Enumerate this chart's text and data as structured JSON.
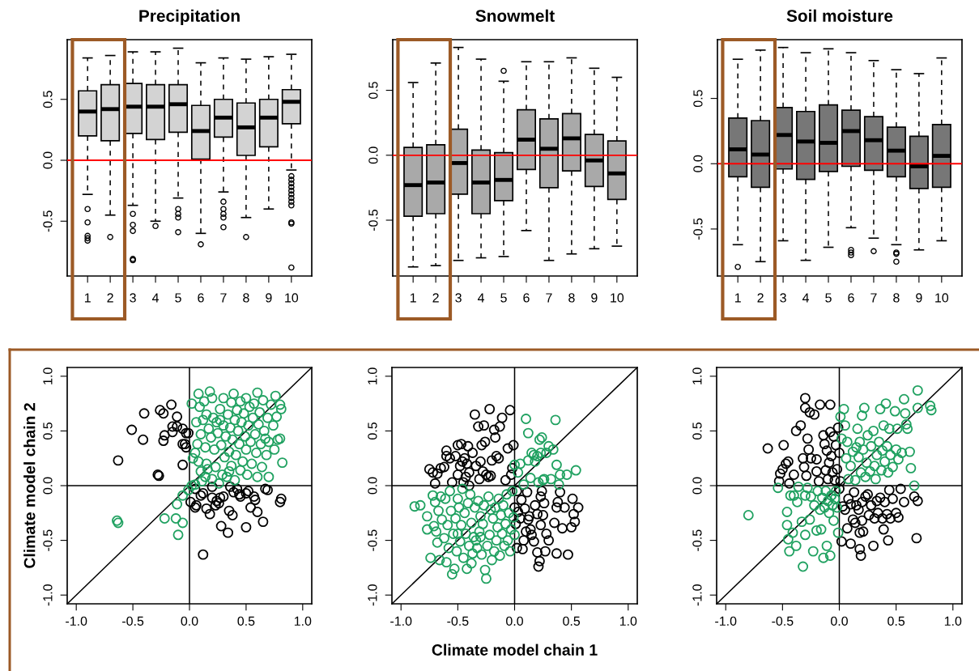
{
  "chart_data": [
    {
      "type": "box",
      "title": "Precipitation",
      "categories": [
        "1",
        "2",
        "3",
        "4",
        "5",
        "6",
        "7",
        "8",
        "9",
        "10"
      ],
      "ylim": [
        -0.95,
        0.99
      ],
      "yticks": [
        {
          "value": -0.5,
          "label": "-0.5"
        },
        {
          "value": 0,
          "label": "0.0"
        },
        {
          "value": 0.5,
          "label": "0.5"
        }
      ],
      "ref_lines": [
        {
          "axis": "y",
          "value": 0,
          "color": "#ff0000"
        }
      ],
      "series": [
        {
          "color": "#d3d3d3",
          "boxes": [
            {
              "low": -0.28,
              "q1": 0.2,
              "median": 0.4,
              "q3": 0.57,
              "high": 0.84,
              "outliers": [
                -0.4,
                -0.51,
                -0.62,
                -0.64,
                -0.66
              ]
            },
            {
              "low": -0.45,
              "q1": 0.16,
              "median": 0.42,
              "q3": 0.62,
              "high": 0.86,
              "outliers": [
                -0.63
              ]
            },
            {
              "low": -0.37,
              "q1": 0.22,
              "median": 0.44,
              "q3": 0.63,
              "high": 0.89,
              "outliers": [
                -0.44,
                -0.53,
                -0.58,
                -0.81,
                -0.82
              ]
            },
            {
              "low": -0.5,
              "q1": 0.17,
              "median": 0.44,
              "q3": 0.62,
              "high": 0.89,
              "outliers": [
                -0.54
              ]
            },
            {
              "low": -0.31,
              "q1": 0.23,
              "median": 0.46,
              "q3": 0.62,
              "high": 0.92,
              "outliers": [
                -0.4,
                -0.44,
                -0.47,
                -0.59
              ]
            },
            {
              "low": -0.6,
              "q1": 0.01,
              "median": 0.24,
              "q3": 0.45,
              "high": 0.8,
              "outliers": [
                -0.69
              ]
            },
            {
              "low": -0.26,
              "q1": 0.19,
              "median": 0.35,
              "q3": 0.5,
              "high": 0.84,
              "outliers": [
                -0.34,
                -0.4,
                -0.44,
                -0.47,
                -0.55
              ]
            },
            {
              "low": -0.47,
              "q1": 0.04,
              "median": 0.27,
              "q3": 0.47,
              "high": 0.83,
              "outliers": [
                -0.63
              ]
            },
            {
              "low": -0.4,
              "q1": 0.11,
              "median": 0.35,
              "q3": 0.5,
              "high": 0.85
            },
            {
              "low": -0.08,
              "q1": 0.3,
              "median": 0.48,
              "q3": 0.58,
              "high": 0.87,
              "outliers": [
                -0.13,
                -0.16,
                -0.19,
                -0.22,
                -0.25,
                -0.28,
                -0.31,
                -0.34,
                -0.37,
                -0.51,
                -0.52,
                -0.88
              ]
            }
          ]
        }
      ]
    },
    {
      "type": "box",
      "title": "Snowmelt",
      "categories": [
        "1",
        "2",
        "3",
        "4",
        "5",
        "6",
        "7",
        "8",
        "9",
        "10"
      ],
      "ylim": [
        -0.93,
        0.89
      ],
      "yticks": [
        {
          "value": -0.5,
          "label": "-0.5"
        },
        {
          "value": 0,
          "label": "0.0"
        },
        {
          "value": 0.5,
          "label": "0.5"
        }
      ],
      "ref_lines": [
        {
          "axis": "y",
          "value": 0,
          "color": "#ff0000"
        }
      ],
      "series": [
        {
          "color": "#a9a9a9",
          "boxes": [
            {
              "low": -0.86,
              "q1": -0.47,
              "median": -0.23,
              "q3": 0.06,
              "high": 0.56
            },
            {
              "low": -0.85,
              "q1": -0.45,
              "median": -0.21,
              "q3": 0.08,
              "high": 0.71
            },
            {
              "low": -0.81,
              "q1": -0.3,
              "median": -0.06,
              "q3": 0.2,
              "high": 0.83
            },
            {
              "low": -0.79,
              "q1": -0.45,
              "median": -0.21,
              "q3": 0.04,
              "high": 0.74
            },
            {
              "low": -0.78,
              "q1": -0.35,
              "median": -0.19,
              "q3": 0.02,
              "high": 0.57,
              "outliers": [
                0.65
              ]
            },
            {
              "low": -0.58,
              "q1": -0.11,
              "median": 0.12,
              "q3": 0.35,
              "high": 0.72
            },
            {
              "low": -0.81,
              "q1": -0.25,
              "median": 0.05,
              "q3": 0.28,
              "high": 0.72
            },
            {
              "low": -0.76,
              "q1": -0.12,
              "median": 0.13,
              "q3": 0.32,
              "high": 0.75
            },
            {
              "low": -0.72,
              "q1": -0.24,
              "median": -0.04,
              "q3": 0.16,
              "high": 0.67
            },
            {
              "low": -0.7,
              "q1": -0.34,
              "median": -0.14,
              "q3": 0.11,
              "high": 0.6
            }
          ]
        }
      ]
    },
    {
      "type": "box",
      "title": "Soil moisture",
      "categories": [
        "1",
        "2",
        "3",
        "4",
        "5",
        "6",
        "7",
        "8",
        "9",
        "10"
      ],
      "ylim": [
        -0.86,
        0.95
      ],
      "yticks": [
        {
          "value": -0.5,
          "label": "-0.5"
        },
        {
          "value": 0,
          "label": "0.0"
        },
        {
          "value": 0.5,
          "label": "0.5"
        }
      ],
      "ref_lines": [
        {
          "axis": "y",
          "value": 0,
          "color": "#ff0000"
        }
      ],
      "series": [
        {
          "color": "#777777",
          "boxes": [
            {
              "low": -0.62,
              "q1": -0.1,
              "median": 0.11,
              "q3": 0.35,
              "high": 0.8,
              "outliers": [
                -0.79
              ]
            },
            {
              "low": -0.75,
              "q1": -0.18,
              "median": 0.07,
              "q3": 0.33,
              "high": 0.87
            },
            {
              "low": -0.59,
              "q1": -0.04,
              "median": 0.22,
              "q3": 0.43,
              "high": 0.89
            },
            {
              "low": -0.74,
              "q1": -0.12,
              "median": 0.17,
              "q3": 0.4,
              "high": 0.85
            },
            {
              "low": -0.64,
              "q1": -0.06,
              "median": 0.16,
              "q3": 0.45,
              "high": 0.88
            },
            {
              "low": -0.49,
              "q1": -0.02,
              "median": 0.25,
              "q3": 0.41,
              "high": 0.85,
              "outliers": [
                -0.66,
                -0.68,
                -0.7
              ]
            },
            {
              "low": -0.57,
              "q1": -0.05,
              "median": 0.18,
              "q3": 0.36,
              "high": 0.79,
              "outliers": [
                -0.67
              ]
            },
            {
              "low": -0.62,
              "q1": -0.1,
              "median": 0.1,
              "q3": 0.28,
              "high": 0.72,
              "outliers": [
                -0.68,
                -0.69,
                -0.75
              ]
            },
            {
              "low": -0.66,
              "q1": -0.19,
              "median": -0.02,
              "q3": 0.21,
              "high": 0.69
            },
            {
              "low": -0.59,
              "q1": -0.18,
              "median": 0.06,
              "q3": 0.3,
              "high": 0.81
            }
          ]
        }
      ]
    },
    {
      "type": "scatter",
      "ylabel": "Climate model chain 2",
      "marker": "circle",
      "xlim": [
        -1.08,
        1.08
      ],
      "ylim": [
        -1.08,
        1.08
      ],
      "xticks": [
        {
          "value": -1,
          "label": "-1.0"
        },
        {
          "value": -0.5,
          "label": "-0.5"
        },
        {
          "value": 0,
          "label": "0.0"
        },
        {
          "value": 0.5,
          "label": "0.5"
        },
        {
          "value": 1,
          "label": "1.0"
        }
      ],
      "yticks": [
        {
          "value": -1,
          "label": "-1.0"
        },
        {
          "value": -0.5,
          "label": "-0.5"
        },
        {
          "value": 0,
          "label": "0.0"
        },
        {
          "value": 0.5,
          "label": "0.5"
        },
        {
          "value": 1,
          "label": "1.0"
        }
      ],
      "ref_lines": [
        {
          "axis": "x",
          "value": 0,
          "color": "#000000"
        },
        {
          "axis": "y",
          "value": 0,
          "color": "#000000"
        }
      ],
      "series": [
        {
          "color": "#000000",
          "x": [
            -0.63,
            -0.51,
            -0.41,
            -0.4,
            -0.28,
            -0.27,
            -0.26,
            -0.23,
            -0.23,
            -0.22,
            -0.16,
            -0.15,
            -0.15,
            -0.11,
            -0.11,
            -0.06,
            -0.06,
            -0.04,
            -0.03,
            -0.03,
            -0.01,
            -0.06,
            0.01,
            0.05,
            0.06,
            0.05,
            0.1,
            0.12,
            0.12,
            0.15,
            0.18,
            0.2,
            0.23,
            0.24,
            0.26,
            0.27,
            0.28,
            0.3,
            0.34,
            0.35,
            0.36,
            0.38,
            0.39,
            0.42,
            0.44,
            0.45,
            0.5,
            0.5,
            0.52,
            0.54,
            0.57,
            0.58,
            0.6,
            0.65,
            0.67,
            0.69,
            0.8,
            0.81,
            0.2
          ],
          "values": [
            0.23,
            0.51,
            0.42,
            0.66,
            0.1,
            0.09,
            0.69,
            0.66,
            0.41,
            0.46,
            0.74,
            0.54,
            0.49,
            0.63,
            0.54,
            0.52,
            0.38,
            0.38,
            0.48,
            0.35,
            0.48,
            0.19,
            -0.15,
            -0.2,
            -0.18,
            -0.03,
            -0.09,
            -0.07,
            -0.63,
            -0.21,
            -0.26,
            -0.11,
            -0.18,
            -0.14,
            -0.16,
            -0.11,
            -0.37,
            -0.1,
            -0.43,
            -0.23,
            -0.01,
            -0.27,
            -0.06,
            -0.03,
            -0.08,
            -0.1,
            -0.07,
            -0.38,
            -0.05,
            -0.2,
            -0.1,
            -0.13,
            -0.24,
            -0.33,
            -0.03,
            -0.04,
            -0.15,
            -0.12,
            -0.01
          ]
        },
        {
          "color": "#1fa160",
          "x": [
            -0.64,
            -0.63,
            -0.22,
            -0.12,
            -0.11,
            -0.1,
            -0.06,
            -0.06,
            -0.01,
            0.02,
            0.05,
            0.02,
            0.03,
            0.05,
            0.06,
            0.07,
            0.08,
            0.09,
            0.1,
            0.1,
            0.11,
            0.12,
            0.13,
            0.14,
            0.15,
            0.15,
            0.16,
            0.17,
            0.18,
            0.19,
            0.2,
            0.2,
            0.21,
            0.22,
            0.23,
            0.24,
            0.25,
            0.26,
            0.27,
            0.28,
            0.29,
            0.3,
            0.3,
            0.31,
            0.32,
            0.33,
            0.34,
            0.35,
            0.36,
            0.37,
            0.37,
            0.38,
            0.39,
            0.4,
            0.4,
            0.41,
            0.42,
            0.43,
            0.44,
            0.45,
            0.45,
            0.46,
            0.47,
            0.48,
            0.49,
            0.5,
            0.5,
            0.51,
            0.52,
            0.53,
            0.54,
            0.55,
            0.56,
            0.57,
            0.58,
            0.59,
            0.6,
            0.6,
            0.61,
            0.62,
            0.63,
            0.64,
            0.65,
            0.66,
            0.67,
            0.68,
            0.69,
            0.7,
            0.7,
            0.72,
            0.74,
            0.75,
            0.77,
            0.78,
            0.8,
            0.81,
            0.82,
            0.8,
            0.76,
            0.35,
            0.27,
            0.14,
            0.08
          ],
          "values": [
            -0.32,
            -0.34,
            -0.3,
            -0.3,
            -0.17,
            -0.45,
            -0.34,
            -0.09,
            -0.04,
            0.0,
            0.01,
            0.75,
            0.25,
            0.3,
            0.58,
            0.38,
            0.84,
            0.72,
            0.47,
            0.13,
            0.04,
            0.6,
            0.77,
            0.35,
            0.65,
            0.2,
            0.15,
            0.52,
            0.86,
            0.44,
            0.8,
            0.06,
            0.62,
            0.33,
            0.17,
            0.58,
            0.48,
            0.02,
            0.7,
            0.37,
            0.1,
            0.8,
            0.55,
            0.26,
            0.45,
            0.08,
            0.65,
            0.31,
            0.53,
            0.76,
            0.18,
            0.42,
            0.84,
            0.6,
            0.05,
            0.28,
            0.69,
            0.5,
            0.38,
            0.14,
            0.77,
            0.58,
            0.22,
            0.66,
            0.45,
            0.8,
            0.33,
            0.1,
            0.55,
            0.72,
            0.4,
            0.2,
            0.62,
            0.75,
            0.47,
            0.3,
            0.85,
            0.08,
            0.56,
            0.67,
            0.38,
            0.17,
            0.78,
            0.5,
            0.43,
            0.28,
            0.62,
            0.4,
            0.08,
            0.74,
            0.55,
            0.33,
            0.63,
            0.42,
            0.74,
            0.7,
            0.21,
            0.43,
            0.82,
            0.13,
            0.6,
            0.08,
            0.22
          ]
        },
        {
          "type": "line",
          "marker": "none",
          "color": "#000000",
          "x": [
            -1.08,
            1.08
          ],
          "values": [
            -1.08,
            1.08
          ]
        }
      ]
    },
    {
      "type": "scatter",
      "xlabel": "Climate model chain 1",
      "marker": "circle",
      "xlim": [
        -1.08,
        1.08
      ],
      "ylim": [
        -1.08,
        1.08
      ],
      "xticks": [
        {
          "value": -1,
          "label": "-1.0"
        },
        {
          "value": -0.5,
          "label": "-0.5"
        },
        {
          "value": 0,
          "label": "0.0"
        },
        {
          "value": 0.5,
          "label": "0.5"
        },
        {
          "value": 1,
          "label": "1.0"
        }
      ],
      "yticks": [
        {
          "value": -1,
          "label": "-1.0"
        },
        {
          "value": -0.5,
          "label": "-0.5"
        },
        {
          "value": 0,
          "label": "0.0"
        },
        {
          "value": 0.5,
          "label": "0.5"
        },
        {
          "value": 1,
          "label": "1.0"
        }
      ],
      "ref_lines": [
        {
          "axis": "x",
          "value": 0,
          "color": "#000000"
        },
        {
          "axis": "y",
          "value": 0,
          "color": "#000000"
        }
      ],
      "series": [
        {
          "color": "#000000",
          "x": [
            -0.7,
            -0.75,
            -0.72,
            -0.68,
            -0.65,
            -0.62,
            -0.6,
            -0.6,
            -0.57,
            -0.55,
            -0.52,
            -0.5,
            -0.5,
            -0.48,
            -0.47,
            -0.46,
            -0.45,
            -0.44,
            -0.43,
            -0.42,
            -0.41,
            -0.4,
            -0.4,
            -0.37,
            -0.35,
            -0.34,
            -0.32,
            -0.31,
            -0.3,
            -0.29,
            -0.28,
            -0.27,
            -0.26,
            -0.25,
            -0.23,
            -0.22,
            -0.21,
            -0.2,
            -0.18,
            -0.17,
            -0.16,
            -0.14,
            -0.13,
            -0.11,
            -0.08,
            -0.06,
            -0.04,
            -0.03,
            -0.01,
            -0.02,
            0.0,
            0.01,
            0.02,
            0.02,
            0.03,
            0.05,
            0.06,
            0.07,
            0.08,
            0.09,
            0.1,
            0.11,
            0.12,
            0.13,
            0.14,
            0.15,
            0.17,
            0.18,
            0.2,
            0.2,
            0.21,
            0.22,
            0.23,
            0.23,
            0.24,
            0.25,
            0.26,
            0.27,
            0.28,
            0.3,
            0.35,
            0.37,
            0.37,
            0.38,
            0.4,
            0.42,
            0.44,
            0.47,
            0.5,
            0.51,
            0.52,
            0.53,
            0.56
          ],
          "values": [
            0.02,
            0.15,
            0.12,
            0.11,
            0.16,
            0.17,
            0.32,
            0.27,
            0.25,
            0.03,
            0.27,
            0.37,
            0.1,
            0.18,
            0.38,
            0.22,
            0.03,
            0.25,
            0.08,
            0.2,
            0.36,
            0.0,
            0.12,
            0.3,
            0.65,
            0.18,
            0.54,
            0.06,
            0.22,
            0.37,
            0.13,
            0.55,
            0.4,
            0.1,
            0.08,
            0.7,
            0.09,
            0.23,
            0.51,
            0.44,
            0.27,
            0.25,
            0.54,
            0.62,
            0.05,
            0.34,
            0.69,
            0.1,
            0.37,
            0.16,
            -0.2,
            -0.35,
            -0.05,
            -0.57,
            -0.24,
            -0.3,
            -0.13,
            -0.58,
            -0.5,
            -0.21,
            -0.42,
            -0.06,
            -0.31,
            -0.28,
            -0.4,
            -0.45,
            -0.51,
            -0.18,
            -0.61,
            -0.26,
            -0.74,
            -0.69,
            -0.1,
            -0.36,
            -0.05,
            -0.27,
            -0.16,
            -0.6,
            -0.44,
            -0.5,
            -0.34,
            -0.2,
            -0.62,
            -0.15,
            -0.06,
            -0.39,
            -0.2,
            -0.63,
            -0.38,
            -0.12,
            -0.26,
            -0.33,
            -0.2
          ]
        },
        {
          "color": "#1fa160",
          "x": [
            0.0,
            0.03,
            0.05,
            0.08,
            0.1,
            0.12,
            0.12,
            0.14,
            0.15,
            0.17,
            0.18,
            0.2,
            0.21,
            0.22,
            0.23,
            0.24,
            0.25,
            0.26,
            0.28,
            0.3,
            0.32,
            0.34,
            0.36,
            0.37,
            0.39,
            0.4,
            0.46,
            0.54,
            -0.88,
            -0.83,
            -0.77,
            -0.77,
            -0.74,
            -0.72,
            -0.71,
            -0.7,
            -0.69,
            -0.68,
            -0.67,
            -0.66,
            -0.65,
            -0.64,
            -0.62,
            -0.61,
            -0.6,
            -0.59,
            -0.58,
            -0.57,
            -0.56,
            -0.55,
            -0.54,
            -0.53,
            -0.52,
            -0.51,
            -0.5,
            -0.49,
            -0.48,
            -0.47,
            -0.46,
            -0.45,
            -0.44,
            -0.43,
            -0.42,
            -0.41,
            -0.4,
            -0.39,
            -0.38,
            -0.37,
            -0.36,
            -0.35,
            -0.34,
            -0.33,
            -0.32,
            -0.31,
            -0.3,
            -0.29,
            -0.28,
            -0.27,
            -0.26,
            -0.25,
            -0.24,
            -0.23,
            -0.22,
            -0.21,
            -0.2,
            -0.19,
            -0.18,
            -0.17,
            -0.16,
            -0.15,
            -0.14,
            -0.13,
            -0.12,
            -0.11,
            -0.1,
            -0.09,
            -0.08,
            -0.07,
            -0.06,
            -0.05,
            -0.04,
            -0.03,
            -0.02,
            -0.01,
            0.0,
            -0.3,
            -0.38,
            -0.5
          ],
          "values": [
            0.19,
            0.12,
            0.2,
            0.01,
            0.61,
            0.48,
            0.23,
            0.07,
            0.3,
            0.28,
            0.22,
            0.27,
            0.03,
            0.42,
            0.3,
            0.44,
            0.05,
            0.06,
            0.3,
            0.36,
            0.06,
            0.33,
            0.6,
            0.19,
            0.01,
            0.1,
            0.1,
            0.14,
            -0.19,
            -0.18,
            -0.28,
            -0.4,
            -0.66,
            -0.09,
            -0.37,
            -0.15,
            -0.42,
            -0.52,
            -0.23,
            -0.68,
            -0.1,
            -0.31,
            -0.48,
            -0.12,
            -0.7,
            -0.36,
            -0.57,
            -0.05,
            -0.23,
            -0.81,
            -0.44,
            -0.76,
            -0.3,
            -0.6,
            -0.12,
            -0.2,
            -0.51,
            -0.36,
            -0.03,
            -0.66,
            -0.25,
            -0.44,
            -0.76,
            -0.16,
            -0.55,
            -0.08,
            -0.34,
            -0.62,
            -0.47,
            -0.2,
            -0.5,
            -0.57,
            -0.14,
            -0.42,
            -0.28,
            -0.63,
            -0.35,
            -0.18,
            -0.77,
            -0.85,
            -0.55,
            -0.1,
            -0.45,
            -0.22,
            -0.68,
            -0.3,
            -0.6,
            -0.2,
            -0.5,
            -0.38,
            -0.12,
            -0.64,
            -0.27,
            -0.44,
            -0.18,
            -0.55,
            -0.35,
            -0.08,
            -0.5,
            -0.25,
            -0.6,
            -0.4,
            -0.05,
            -0.29,
            -0.45,
            -0.47,
            -0.71,
            -0.44
          ]
        },
        {
          "type": "line",
          "marker": "none",
          "color": "#000000",
          "x": [
            -1.08,
            1.08
          ],
          "values": [
            -1.08,
            1.08
          ]
        }
      ]
    },
    {
      "type": "scatter",
      "marker": "circle",
      "xlim": [
        -1.08,
        1.08
      ],
      "ylim": [
        -1.08,
        1.08
      ],
      "xticks": [
        {
          "value": -1,
          "label": "-1.0"
        },
        {
          "value": -0.5,
          "label": "-0.5"
        },
        {
          "value": 0,
          "label": "0.0"
        },
        {
          "value": 0.5,
          "label": "0.5"
        },
        {
          "value": 1,
          "label": "1.0"
        }
      ],
      "yticks": [
        {
          "value": -1,
          "label": "-1.0"
        },
        {
          "value": -0.5,
          "label": "-0.5"
        },
        {
          "value": 0,
          "label": "0.0"
        },
        {
          "value": 0.5,
          "label": "0.5"
        },
        {
          "value": 1,
          "label": "1.0"
        }
      ],
      "ref_lines": [
        {
          "axis": "x",
          "value": 0,
          "color": "#000000"
        },
        {
          "axis": "y",
          "value": 0,
          "color": "#000000"
        }
      ],
      "series": [
        {
          "color": "#000000",
          "x": [
            -0.63,
            -0.53,
            -0.52,
            -0.5,
            -0.49,
            -0.47,
            -0.45,
            -0.44,
            -0.4,
            -0.38,
            -0.34,
            -0.32,
            -0.31,
            -0.3,
            -0.3,
            -0.29,
            -0.28,
            -0.27,
            -0.26,
            -0.25,
            -0.22,
            -0.2,
            -0.2,
            -0.18,
            -0.17,
            -0.14,
            -0.13,
            -0.12,
            -0.11,
            -0.1,
            -0.09,
            -0.08,
            -0.08,
            -0.07,
            -0.06,
            -0.05,
            -0.04,
            -0.03,
            -0.02,
            -0.01,
            0.0,
            0.01,
            0.0,
            0.02,
            0.03,
            0.05,
            0.07,
            0.08,
            0.1,
            0.1,
            0.12,
            0.13,
            0.14,
            0.15,
            0.17,
            0.18,
            0.18,
            0.19,
            0.2,
            0.2,
            0.21,
            0.23,
            0.25,
            0.26,
            0.28,
            0.3,
            0.31,
            0.33,
            0.34,
            0.36,
            0.38,
            0.39,
            0.4,
            0.42,
            0.43,
            0.45,
            0.47,
            0.5,
            0.52,
            0.54,
            0.57,
            0.66,
            0.69,
            0.68,
            0.44
          ],
          "values": [
            0.34,
            0.04,
            0.11,
            0.15,
            0.37,
            0.2,
            0.22,
            0.02,
            0.1,
            0.5,
            0.55,
            0.25,
            0.17,
            0.8,
            0.71,
            0.09,
            0.43,
            0.33,
            0.67,
            0.25,
            0.65,
            0.24,
            0.13,
            0.04,
            0.74,
            0.46,
            0.38,
            0.14,
            0.32,
            0.06,
            0.21,
            0.49,
            0.74,
            0.27,
            0.12,
            0.45,
            0.05,
            0.37,
            0.15,
            0.53,
            0.3,
            0.04,
            -0.03,
            -0.51,
            -0.19,
            -0.22,
            -0.39,
            -0.12,
            -0.53,
            -0.17,
            -0.31,
            -0.06,
            -0.34,
            -0.18,
            -0.22,
            -0.43,
            -0.58,
            -0.64,
            -0.15,
            -0.32,
            -0.42,
            -0.1,
            -0.08,
            -0.27,
            -0.18,
            -0.55,
            -0.3,
            -0.14,
            -0.25,
            -0.11,
            -0.3,
            -0.4,
            -0.15,
            -0.26,
            -0.5,
            -0.3,
            -0.12,
            -0.25,
            -0.29,
            -0.03,
            -0.15,
            -0.1,
            -0.14,
            -0.48,
            -0.04
          ]
        },
        {
          "color": "#1fa160",
          "x": [
            0.01,
            0.02,
            0.04,
            0.05,
            0.06,
            0.07,
            0.08,
            0.1,
            0.12,
            0.14,
            0.15,
            0.16,
            0.17,
            0.18,
            0.19,
            0.2,
            0.21,
            0.22,
            0.23,
            0.24,
            0.25,
            0.27,
            0.28,
            0.3,
            0.31,
            0.32,
            0.33,
            0.35,
            0.36,
            0.37,
            0.38,
            0.39,
            0.4,
            0.41,
            0.42,
            0.43,
            0.44,
            0.45,
            0.47,
            0.49,
            0.5,
            0.51,
            0.52,
            0.55,
            0.57,
            0.58,
            0.6,
            0.62,
            0.63,
            0.66,
            0.69,
            0.69,
            0.8,
            0.81,
            0.59,
            -0.8,
            -0.54,
            -0.46,
            -0.46,
            -0.45,
            -0.44,
            -0.43,
            -0.41,
            -0.4,
            -0.38,
            -0.37,
            -0.36,
            -0.33,
            -0.32,
            -0.3,
            -0.3,
            -0.28,
            -0.26,
            -0.25,
            -0.23,
            -0.22,
            -0.2,
            -0.19,
            -0.17,
            -0.16,
            -0.15,
            -0.14,
            -0.13,
            -0.12,
            -0.11,
            -0.1,
            -0.09,
            -0.08,
            -0.07,
            -0.06,
            -0.05,
            -0.04,
            -0.02,
            -0.01,
            -0.03
          ],
          "values": [
            0.63,
            0.43,
            0.7,
            0.55,
            0.25,
            0.4,
            0.06,
            0.18,
            0.31,
            0.05,
            0.35,
            0.52,
            0.26,
            0.4,
            0.12,
            0.64,
            0.33,
            0.71,
            0.08,
            0.21,
            0.46,
            0.13,
            0.36,
            0.5,
            0.18,
            0.06,
            0.28,
            0.4,
            0.7,
            0.14,
            0.32,
            0.55,
            0.22,
            0.75,
            0.36,
            0.12,
            0.52,
            0.28,
            0.17,
            0.68,
            0.33,
            0.52,
            0.24,
            0.3,
            0.79,
            0.66,
            0.52,
            0.31,
            0.16,
            0.0,
            0.87,
            0.71,
            0.73,
            0.69,
            0.56,
            -0.27,
            -0.02,
            -0.24,
            -0.36,
            -0.49,
            -0.6,
            -0.09,
            -0.43,
            -0.09,
            -0.55,
            -0.15,
            -0.01,
            -0.33,
            -0.74,
            -0.45,
            -0.09,
            -0.02,
            -0.31,
            -0.1,
            -0.6,
            -0.18,
            -0.41,
            -0.05,
            -0.22,
            -0.4,
            -0.11,
            -0.66,
            -0.2,
            -0.05,
            -0.55,
            -0.14,
            -0.25,
            -0.64,
            -0.09,
            -0.18,
            -0.32,
            -0.12,
            -0.2,
            -0.43,
            -0.05
          ]
        },
        {
          "type": "line",
          "marker": "none",
          "color": "#000000",
          "x": [
            -1.08,
            1.08
          ],
          "values": [
            -1.08,
            1.08
          ]
        }
      ]
    }
  ]
}
